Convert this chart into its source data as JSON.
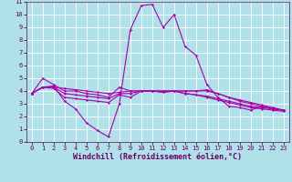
{
  "xlabel": "Windchill (Refroidissement éolien,°C)",
  "background_color": "#b0e0e8",
  "grid_color": "#ffffff",
  "line_color": "#aa00aa",
  "xlim": [
    -0.5,
    23.5
  ],
  "ylim": [
    0,
    11
  ],
  "xticks": [
    0,
    1,
    2,
    3,
    4,
    5,
    6,
    7,
    8,
    9,
    10,
    11,
    12,
    13,
    14,
    15,
    16,
    17,
    18,
    19,
    20,
    21,
    22,
    23
  ],
  "yticks": [
    0,
    1,
    2,
    3,
    4,
    5,
    6,
    7,
    8,
    9,
    10,
    11
  ],
  "series": [
    {
      "x": [
        0,
        1,
        2,
        3,
        4,
        5,
        6,
        7,
        8,
        9,
        10,
        11,
        12,
        13,
        14,
        15,
        16,
        17,
        18,
        19,
        20,
        21,
        22,
        23
      ],
      "y": [
        3.8,
        4.3,
        4.4,
        3.2,
        2.6,
        1.5,
        0.9,
        0.4,
        3.0,
        8.8,
        10.7,
        10.8,
        9.0,
        10.0,
        7.5,
        6.8,
        4.5,
        3.5,
        2.8,
        2.7,
        2.5,
        2.8,
        2.6,
        2.5
      ]
    },
    {
      "x": [
        0,
        1,
        2,
        3,
        4,
        5,
        6,
        7,
        8,
        9,
        10,
        11,
        12,
        13,
        14,
        15,
        16,
        17,
        18,
        19,
        20,
        21,
        22,
        23
      ],
      "y": [
        3.8,
        5.0,
        4.5,
        4.0,
        4.0,
        3.8,
        3.7,
        3.5,
        4.3,
        4.0,
        4.0,
        4.0,
        4.0,
        4.0,
        4.0,
        4.0,
        4.1,
        3.8,
        3.5,
        3.2,
        3.0,
        2.8,
        2.6,
        2.5
      ]
    },
    {
      "x": [
        0,
        1,
        2,
        3,
        4,
        5,
        6,
        7,
        8,
        9,
        10,
        11,
        12,
        13,
        14,
        15,
        16,
        17,
        18,
        19,
        20,
        21,
        22,
        23
      ],
      "y": [
        3.8,
        4.3,
        4.3,
        4.2,
        4.1,
        4.0,
        3.9,
        3.8,
        3.9,
        4.0,
        4.0,
        4.0,
        4.0,
        4.0,
        4.0,
        4.0,
        4.0,
        3.8,
        3.5,
        3.3,
        3.1,
        2.9,
        2.7,
        2.5
      ]
    },
    {
      "x": [
        0,
        1,
        2,
        3,
        4,
        5,
        6,
        7,
        8,
        9,
        10,
        11,
        12,
        13,
        14,
        15,
        16,
        17,
        18,
        19,
        20,
        21,
        22,
        23
      ],
      "y": [
        3.8,
        4.3,
        4.3,
        3.8,
        3.7,
        3.6,
        3.5,
        3.4,
        3.8,
        3.8,
        4.0,
        4.0,
        3.9,
        4.0,
        3.8,
        3.7,
        3.6,
        3.4,
        3.2,
        3.0,
        2.8,
        2.7,
        2.6,
        2.5
      ]
    },
    {
      "x": [
        0,
        1,
        2,
        3,
        4,
        5,
        6,
        7,
        8,
        9,
        10,
        11,
        12,
        13,
        14,
        15,
        16,
        17,
        18,
        19,
        20,
        21,
        22,
        23
      ],
      "y": [
        3.8,
        4.3,
        4.2,
        3.5,
        3.4,
        3.3,
        3.2,
        3.1,
        3.7,
        3.5,
        4.0,
        4.0,
        3.9,
        4.0,
        3.8,
        3.7,
        3.5,
        3.3,
        3.1,
        2.9,
        2.7,
        2.6,
        2.5,
        2.4
      ]
    }
  ],
  "marker": "D",
  "markersize": 1.5,
  "linewidth": 0.8,
  "tick_fontsize": 5,
  "xlabel_fontsize": 6
}
